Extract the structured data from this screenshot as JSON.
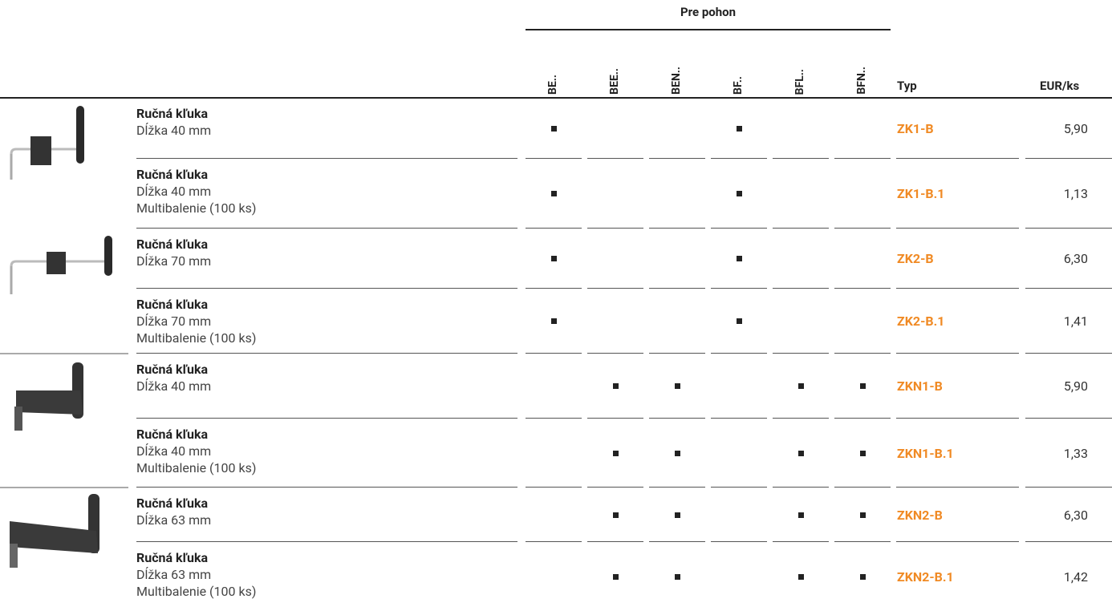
{
  "header": {
    "group": "Pre pohon",
    "drives": [
      "BE..",
      "BEE..",
      "BEN..",
      "BF..",
      "BFL..",
      "BFN.."
    ],
    "type": "Typ",
    "price": "EUR/ks"
  },
  "rows": [
    {
      "name": "Ručná kľuka",
      "details": [
        "Dĺžka 40 mm"
      ],
      "drives": [
        true,
        false,
        false,
        true,
        false,
        false
      ],
      "type": "ZK1-B",
      "price": "5,90"
    },
    {
      "name": "Ručná kľuka",
      "details": [
        "Dĺžka 40 mm",
        "Multibalenie (100 ks)"
      ],
      "drives": [
        true,
        false,
        false,
        true,
        false,
        false
      ],
      "type": "ZK1-B.1",
      "price": "1,13"
    },
    {
      "name": "Ručná kľuka",
      "details": [
        "Dĺžka 70 mm"
      ],
      "drives": [
        true,
        false,
        false,
        true,
        false,
        false
      ],
      "type": "ZK2-B",
      "price": "6,30"
    },
    {
      "name": "Ručná kľuka",
      "details": [
        "Dĺžka 70 mm",
        "Multibalenie (100 ks)"
      ],
      "drives": [
        true,
        false,
        false,
        true,
        false,
        false
      ],
      "type": "ZK2-B.1",
      "price": "1,41"
    },
    {
      "name": "Ručná kľuka",
      "details": [
        "Dĺžka 40 mm"
      ],
      "drives": [
        false,
        true,
        true,
        false,
        true,
        true
      ],
      "type": "ZKN1-B",
      "price": "5,90"
    },
    {
      "name": "Ručná kľuka",
      "details": [
        "Dĺžka 40 mm",
        "Multibalenie (100 ks)"
      ],
      "drives": [
        false,
        true,
        true,
        false,
        true,
        true
      ],
      "type": "ZKN1-B.1",
      "price": "1,33"
    },
    {
      "name": "Ručná kľuka",
      "details": [
        "Dĺžka 63 mm"
      ],
      "drives": [
        false,
        true,
        true,
        false,
        true,
        true
      ],
      "type": "ZKN2-B",
      "price": "6,30"
    },
    {
      "name": "Ručná kľuka",
      "details": [
        "Dĺžka 63 mm",
        "Multibalenie (100 ks)"
      ],
      "drives": [
        false,
        true,
        true,
        false,
        true,
        true
      ],
      "type": "ZKN2-B.1",
      "price": "1,42"
    }
  ]
}
